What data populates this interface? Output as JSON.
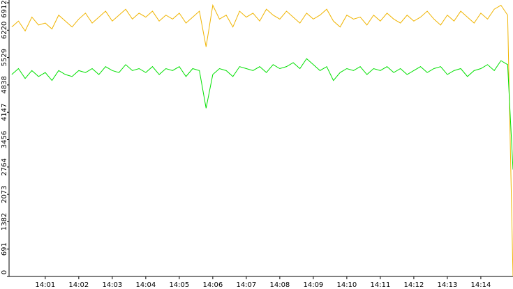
{
  "chart_data": {
    "type": "line",
    "x": [
      0,
      0.2,
      0.4,
      0.6,
      0.8,
      1,
      1.2,
      1.4,
      1.6,
      1.8,
      2,
      2.2,
      2.4,
      2.6,
      2.8,
      3,
      3.2,
      3.4,
      3.6,
      3.8,
      4,
      4.2,
      4.4,
      4.6,
      4.8,
      5,
      5.2,
      5.4,
      5.6,
      5.8,
      6,
      6.2,
      6.4,
      6.6,
      6.8,
      7,
      7.2,
      7.4,
      7.6,
      7.8,
      8,
      8.2,
      8.4,
      8.6,
      8.8,
      9,
      9.2,
      9.4,
      9.6,
      9.8,
      10,
      10.2,
      10.4,
      10.6,
      10.8,
      11,
      11.2,
      11.4,
      11.6,
      11.8,
      12,
      12.2,
      12.4,
      12.6,
      12.8,
      13,
      13.2,
      13.4,
      13.6,
      13.8,
      14,
      14.2,
      14.4,
      14.6,
      14.8,
      14.96
    ],
    "series": [
      {
        "color": "#f0b400",
        "values": [
          6300,
          6450,
          6200,
          6550,
          6350,
          6400,
          6250,
          6600,
          6450,
          6300,
          6500,
          6650,
          6400,
          6550,
          6700,
          6450,
          6600,
          6750,
          6500,
          6650,
          6550,
          6700,
          6450,
          6600,
          6500,
          6650,
          6400,
          6550,
          6700,
          5800,
          6850,
          6500,
          6600,
          6300,
          6700,
          6550,
          6650,
          6450,
          6750,
          6600,
          6500,
          6700,
          6550,
          6400,
          6650,
          6500,
          6600,
          6750,
          6450,
          6300,
          6600,
          6500,
          6550,
          6350,
          6600,
          6450,
          6650,
          6500,
          6400,
          6600,
          6450,
          6550,
          6700,
          6500,
          6350,
          6600,
          6450,
          6700,
          6550,
          6400,
          6650,
          6500,
          6750,
          6850,
          6600,
          0
        ]
      },
      {
        "color": "#00e000",
        "values": [
          5100,
          5250,
          5000,
          5200,
          5050,
          5150,
          4950,
          5200,
          5100,
          5050,
          5200,
          5150,
          5250,
          5100,
          5300,
          5200,
          5150,
          5350,
          5200,
          5250,
          5150,
          5300,
          5100,
          5250,
          5200,
          5300,
          5050,
          5250,
          5200,
          4250,
          5100,
          5250,
          5200,
          5050,
          5300,
          5250,
          5200,
          5300,
          5150,
          5350,
          5250,
          5300,
          5400,
          5250,
          5500,
          5350,
          5200,
          5300,
          4950,
          5150,
          5250,
          5200,
          5300,
          5100,
          5250,
          5200,
          5300,
          5150,
          5250,
          5100,
          5200,
          5300,
          5150,
          5250,
          5300,
          5100,
          5200,
          5250,
          5050,
          5200,
          5250,
          5350,
          5200,
          5450,
          5350,
          2700
        ]
      }
    ],
    "xlim": [
      -0.08,
      14.96
    ],
    "xticks": [
      {
        "value": 1,
        "label": "14:01"
      },
      {
        "value": 2,
        "label": "14:02"
      },
      {
        "value": 3,
        "label": "14:03"
      },
      {
        "value": 4,
        "label": "14:04"
      },
      {
        "value": 5,
        "label": "14:05"
      },
      {
        "value": 6,
        "label": "14:06"
      },
      {
        "value": 7,
        "label": "14:07"
      },
      {
        "value": 8,
        "label": "14:08"
      },
      {
        "value": 9,
        "label": "14:09"
      },
      {
        "value": 10,
        "label": "14:10"
      },
      {
        "value": 11,
        "label": "14:11"
      },
      {
        "value": 12,
        "label": "14:12"
      },
      {
        "value": 13,
        "label": "14:13"
      },
      {
        "value": 14,
        "label": "14:14"
      }
    ],
    "ylim": [
      0,
      6912
    ],
    "yticks": [
      0,
      691,
      1382,
      2073,
      2764,
      3456,
      4147,
      4838,
      5529,
      6220,
      6912
    ]
  }
}
